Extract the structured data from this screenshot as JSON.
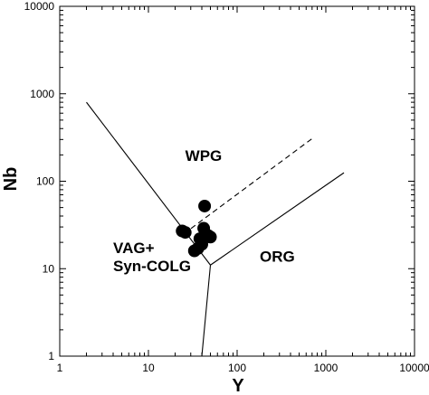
{
  "chart_data": {
    "type": "scatter",
    "title": "",
    "xlabel": "Y",
    "ylabel": "Nb",
    "xscale": "log",
    "yscale": "log",
    "xlim": [
      1,
      10000
    ],
    "ylim": [
      1,
      10000
    ],
    "x_ticks": [
      "1",
      "10",
      "100",
      "1000",
      "10000"
    ],
    "y_ticks": [
      "1",
      "10",
      "100",
      "1000",
      "10000"
    ],
    "grid": false,
    "legend": "none",
    "marker_color": "#000000",
    "fields": [
      {
        "label_lines": [
          "WPG"
        ],
        "anchor": [
          26,
          170
        ]
      },
      {
        "label_lines": [
          "VAG+",
          "Syn-COLG"
        ],
        "anchor": [
          4,
          15
        ]
      },
      {
        "label_lines": [
          "ORG"
        ],
        "anchor": [
          180,
          12
        ]
      }
    ],
    "boundaries": [
      {
        "style": "solid",
        "points": [
          [
            2,
            800
          ],
          [
            50,
            11
          ]
        ]
      },
      {
        "style": "solid",
        "points": [
          [
            50,
            11
          ],
          [
            1600,
            125
          ]
        ]
      },
      {
        "style": "solid",
        "points": [
          [
            50,
            11
          ],
          [
            40,
            1
          ]
        ]
      },
      {
        "style": "dashed",
        "points": [
          [
            25,
            25
          ],
          [
            740,
            320
          ]
        ]
      }
    ],
    "points": [
      {
        "x": 24,
        "y": 27
      },
      {
        "x": 26,
        "y": 26
      },
      {
        "x": 33,
        "y": 16
      },
      {
        "x": 36,
        "y": 17
      },
      {
        "x": 38,
        "y": 22
      },
      {
        "x": 40,
        "y": 19
      },
      {
        "x": 42,
        "y": 29
      },
      {
        "x": 44,
        "y": 23
      },
      {
        "x": 47,
        "y": 24
      },
      {
        "x": 50,
        "y": 23
      },
      {
        "x": 43,
        "y": 52
      }
    ]
  }
}
